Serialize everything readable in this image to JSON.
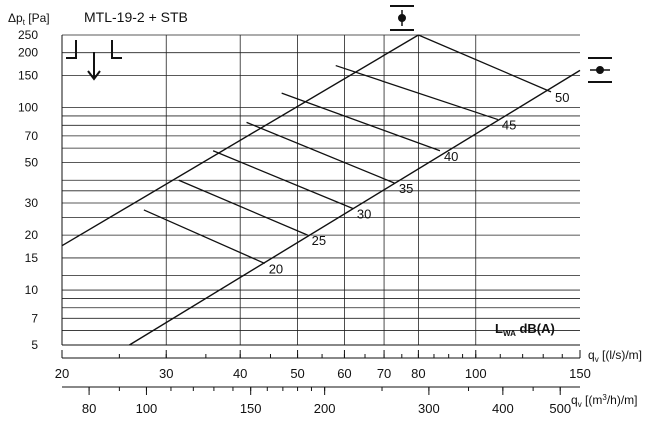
{
  "chart_data": {
    "type": "line",
    "title": "MTL-19-2 + STB",
    "ylabel": {
      "base": "Δp",
      "sub": "t",
      "unit": " [Pa]"
    },
    "ylim": [
      5,
      250
    ],
    "y_scale": "log",
    "y_ticks": [
      5,
      7,
      10,
      15,
      20,
      30,
      50,
      70,
      100,
      150,
      200,
      250
    ],
    "y_grid": [
      5,
      6,
      7,
      8,
      9,
      10,
      12,
      15,
      20,
      25,
      30,
      35,
      40,
      50,
      60,
      70,
      80,
      90,
      100,
      150,
      200,
      250
    ],
    "x_scale": "log",
    "xlim": [
      20,
      150
    ],
    "x_grid": [
      30,
      40,
      50,
      60,
      70,
      80,
      100
    ],
    "x_axis_1": {
      "label": {
        "base": "q",
        "sub": "v",
        "unit": " [(l/s)/m]"
      },
      "ticks": [
        20,
        30,
        40,
        50,
        60,
        70,
        80,
        100,
        150
      ]
    },
    "x_axis_2": {
      "label": {
        "base": "q",
        "sub": "v",
        "unit": " [(m",
        "sup": "3",
        "unit2": "/h)/m]"
      },
      "ticks": [
        80,
        100,
        150,
        200,
        300,
        400,
        500
      ]
    },
    "series": [
      {
        "points": [
          [
            26,
            5
          ],
          [
            150,
            160
          ]
        ]
      },
      {
        "points": [
          [
            20,
            17.5
          ],
          [
            80,
            250
          ]
        ]
      }
    ],
    "sound_lines": [
      {
        "label": "20",
        "start": [
          27.5,
          27.5
        ],
        "end": [
          44,
          14
        ]
      },
      {
        "label": "25",
        "start": [
          31.5,
          40
        ],
        "end": [
          52,
          20
        ]
      },
      {
        "label": "30",
        "start": [
          36,
          58
        ],
        "end": [
          62,
          28
        ]
      },
      {
        "label": "35",
        "start": [
          41,
          83
        ],
        "end": [
          73,
          38.5
        ]
      },
      {
        "label": "40",
        "start": [
          47,
          120
        ],
        "end": [
          87,
          58
        ]
      },
      {
        "label": "45",
        "start": [
          58,
          170
        ],
        "end": [
          109,
          86
        ]
      },
      {
        "label": "50",
        "start": [
          80,
          250
        ],
        "end": [
          134,
          122
        ]
      }
    ],
    "sound_unit": {
      "base": "L",
      "sub": "WA",
      "rest": " dB(A)"
    },
    "icons": [
      "pressure-gauge-icon",
      "airflow-down-icon",
      "terminal-connection-icon"
    ]
  }
}
